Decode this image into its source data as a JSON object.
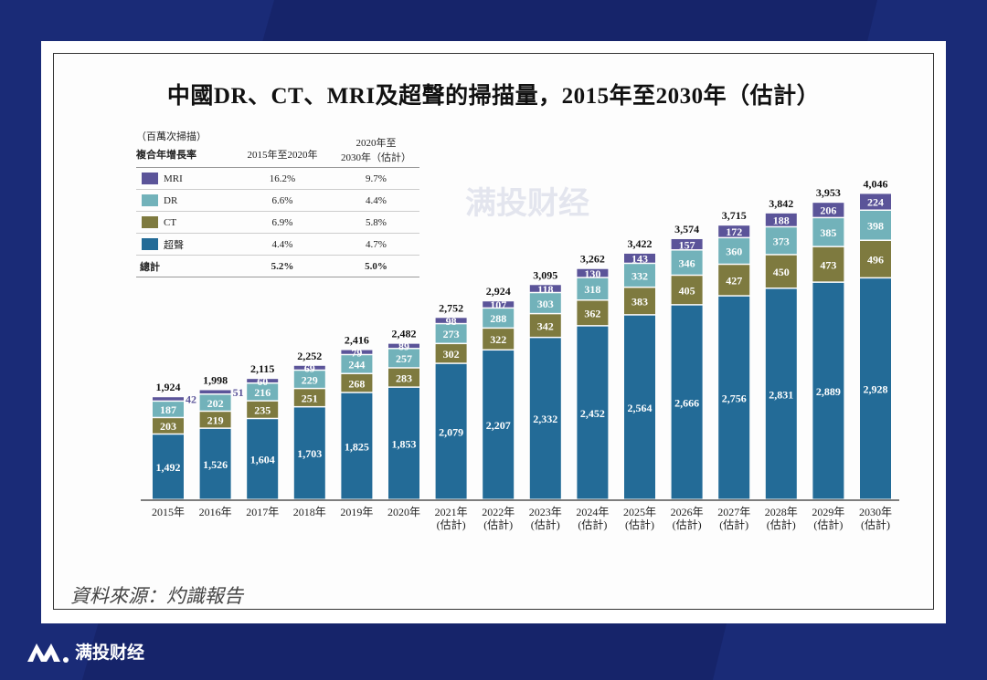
{
  "title": "中國DR、CT、MRI及超聲的掃描量，2015年至2030年（估計）",
  "source": "資料來源：灼識報告",
  "watermark": "满投财经",
  "brand": {
    "name": "满投财经"
  },
  "legend": {
    "unit": "（百萬次掃描）",
    "header": "複合年增長率",
    "col1": "2015年至2020年",
    "col2a": "2020年至",
    "col2b": "2030年（估計）",
    "rows": [
      {
        "label": "MRI",
        "color": "#5b5499",
        "cagr1": "16.2%",
        "cagr2": "9.7%"
      },
      {
        "label": "DR",
        "color": "#72b2ba",
        "cagr1": "6.6%",
        "cagr2": "4.4%"
      },
      {
        "label": "CT",
        "color": "#7e7a3f",
        "cagr1": "6.9%",
        "cagr2": "5.8%"
      },
      {
        "label": "超聲",
        "color": "#236b97",
        "cagr1": "4.4%",
        "cagr2": "4.7%"
      }
    ],
    "total": {
      "label": "總計",
      "cagr1": "5.2%",
      "cagr2": "5.0%"
    }
  },
  "chart_data": {
    "type": "bar",
    "stacked": true,
    "categories": [
      "2015年",
      "2016年",
      "2017年",
      "2018年",
      "2019年",
      "2020年",
      "2021年\n(估計)",
      "2022年\n(估計)",
      "2023年\n(估計)",
      "2024年\n(估計)",
      "2025年\n(估計)",
      "2026年\n(估計)",
      "2027年\n(估計)",
      "2028年\n(估計)",
      "2029年\n(估計)",
      "2030年\n(估計)"
    ],
    "series": [
      {
        "name": "超聲",
        "color": "#236b97",
        "values": [
          1492,
          1526,
          1604,
          1703,
          1825,
          1853,
          2079,
          2207,
          2332,
          2452,
          2564,
          2666,
          2756,
          2831,
          2889,
          2928
        ]
      },
      {
        "name": "CT",
        "color": "#7e7a3f",
        "values": [
          203,
          219,
          235,
          251,
          268,
          283,
          302,
          322,
          342,
          362,
          383,
          405,
          427,
          450,
          473,
          496
        ]
      },
      {
        "name": "DR",
        "color": "#72b2ba",
        "values": [
          187,
          202,
          216,
          229,
          244,
          257,
          273,
          288,
          303,
          318,
          332,
          346,
          360,
          373,
          385,
          398
        ]
      },
      {
        "name": "MRI",
        "color": "#5b5499",
        "values": [
          42,
          51,
          60,
          69,
          79,
          89,
          98,
          107,
          118,
          130,
          143,
          157,
          172,
          188,
          206,
          224
        ]
      }
    ],
    "totals": [
      "1,924",
      "1,998",
      "2,115",
      "2,252",
      "2,416",
      "2,482",
      "2,752",
      "2,924",
      "3,095",
      "3,262",
      "3,422",
      "3,574",
      "3,715",
      "3,842",
      "3,953",
      "4,046"
    ],
    "unit": "（百萬次掃描）",
    "legend": "top-left",
    "grid": false
  }
}
